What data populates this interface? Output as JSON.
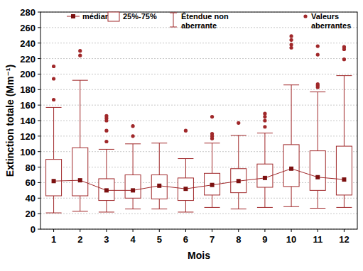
{
  "chart_data": {
    "type": "box",
    "x_label": "Mois",
    "y_label": "Extinction totale (Mm⁻¹)",
    "categories": [
      "1",
      "2",
      "3",
      "4",
      "5",
      "6",
      "7",
      "8",
      "9",
      "10",
      "11",
      "12"
    ],
    "stats": {
      "median": [
        62,
        63,
        50,
        50,
        56,
        52,
        57,
        62,
        66,
        78,
        67,
        64
      ],
      "q1": [
        43,
        43,
        37,
        40,
        39,
        37,
        44,
        47,
        54,
        55,
        50,
        44
      ],
      "q3": [
        90,
        105,
        65,
        70,
        70,
        66,
        72,
        78,
        84,
        109,
        101,
        107
      ],
      "low": [
        21,
        23,
        22,
        26,
        26,
        22,
        28,
        26,
        28,
        29,
        27,
        28
      ],
      "high": [
        157,
        192,
        103,
        110,
        111,
        91,
        111,
        121,
        124,
        186,
        177,
        198
      ],
      "outliers": [
        [
          167,
          194,
          210
        ],
        [
          224,
          230
        ],
        [
          113,
          127,
          140,
          143,
          146
        ],
        [
          120,
          133
        ],
        [],
        [
          127
        ],
        [
          117,
          120,
          123,
          145
        ],
        [
          137
        ],
        [
          132,
          140,
          145,
          149
        ],
        [
          234,
          238,
          244,
          249
        ],
        [
          183,
          185,
          187,
          225,
          236
        ],
        [
          219,
          232,
          235
        ]
      ]
    },
    "legend_labels": {
      "median": "médiane",
      "box": "25%-75%",
      "whisker": "Étendue non aberrante",
      "outlier": "Valeurs aberrantes"
    },
    "ylim": [
      0,
      280
    ],
    "yticks": [
      0,
      20,
      40,
      60,
      80,
      100,
      120,
      140,
      160,
      180,
      200,
      220,
      240,
      260,
      280
    ],
    "grid": true,
    "legend": "top",
    "color": "#a0282a",
    "marker": "square"
  }
}
